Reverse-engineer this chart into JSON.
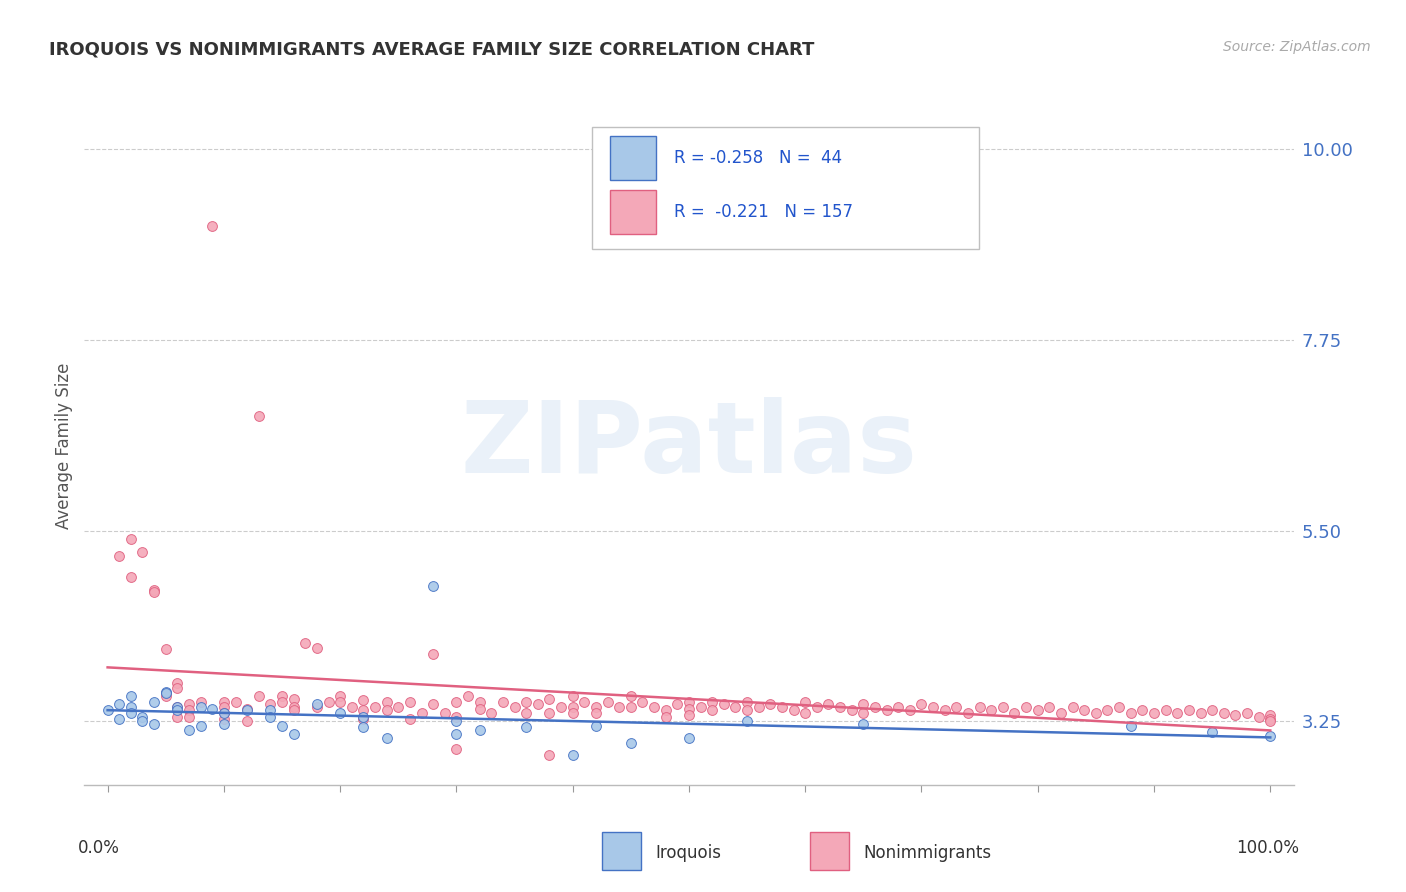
{
  "title": "IROQUOIS VS NONIMMIGRANTS AVERAGE FAMILY SIZE CORRELATION CHART",
  "source": "Source: ZipAtlas.com",
  "ylabel": "Average Family Size",
  "watermark": "ZIPatlas",
  "yticks": [
    3.25,
    5.5,
    7.75,
    10.0
  ],
  "ytick_color": "#4472c4",
  "background_color": "#ffffff",
  "iroquois_color": "#a8c8e8",
  "nonimmigrants_color": "#f4a8b8",
  "iroquois_line_color": "#4472c4",
  "nonimmigrants_line_color": "#e06080",
  "iroquois_points": [
    [
      0.0,
      3.38
    ],
    [
      0.01,
      3.45
    ],
    [
      0.01,
      3.28
    ],
    [
      0.02,
      3.55
    ],
    [
      0.02,
      3.42
    ],
    [
      0.02,
      3.35
    ],
    [
      0.03,
      3.3
    ],
    [
      0.03,
      3.25
    ],
    [
      0.04,
      3.48
    ],
    [
      0.04,
      3.22
    ],
    [
      0.05,
      3.6
    ],
    [
      0.05,
      3.58
    ],
    [
      0.06,
      3.42
    ],
    [
      0.06,
      3.38
    ],
    [
      0.07,
      3.15
    ],
    [
      0.08,
      3.2
    ],
    [
      0.08,
      3.42
    ],
    [
      0.09,
      3.4
    ],
    [
      0.1,
      3.35
    ],
    [
      0.1,
      3.22
    ],
    [
      0.12,
      3.38
    ],
    [
      0.14,
      3.38
    ],
    [
      0.14,
      3.3
    ],
    [
      0.15,
      3.2
    ],
    [
      0.16,
      3.1
    ],
    [
      0.18,
      3.45
    ],
    [
      0.2,
      3.35
    ],
    [
      0.22,
      3.18
    ],
    [
      0.22,
      3.3
    ],
    [
      0.24,
      3.05
    ],
    [
      0.28,
      4.85
    ],
    [
      0.3,
      3.25
    ],
    [
      0.3,
      3.1
    ],
    [
      0.32,
      3.15
    ],
    [
      0.36,
      3.18
    ],
    [
      0.4,
      2.85
    ],
    [
      0.42,
      3.2
    ],
    [
      0.45,
      3.0
    ],
    [
      0.5,
      3.05
    ],
    [
      0.55,
      3.25
    ],
    [
      0.65,
      3.22
    ],
    [
      0.88,
      3.2
    ],
    [
      0.95,
      3.12
    ],
    [
      1.0,
      3.08
    ]
  ],
  "nonimmigrants_points": [
    [
      0.01,
      5.2
    ],
    [
      0.02,
      4.95
    ],
    [
      0.02,
      5.4
    ],
    [
      0.03,
      5.25
    ],
    [
      0.04,
      4.8
    ],
    [
      0.04,
      4.78
    ],
    [
      0.05,
      3.58
    ],
    [
      0.05,
      3.55
    ],
    [
      0.05,
      4.1
    ],
    [
      0.06,
      3.7
    ],
    [
      0.06,
      3.65
    ],
    [
      0.06,
      3.42
    ],
    [
      0.06,
      3.3
    ],
    [
      0.07,
      3.45
    ],
    [
      0.07,
      3.38
    ],
    [
      0.07,
      3.3
    ],
    [
      0.08,
      3.48
    ],
    [
      0.09,
      9.1
    ],
    [
      0.1,
      3.48
    ],
    [
      0.1,
      3.42
    ],
    [
      0.1,
      3.35
    ],
    [
      0.1,
      3.28
    ],
    [
      0.11,
      3.48
    ],
    [
      0.12,
      3.25
    ],
    [
      0.12,
      3.4
    ],
    [
      0.13,
      6.85
    ],
    [
      0.13,
      3.55
    ],
    [
      0.14,
      3.45
    ],
    [
      0.15,
      3.55
    ],
    [
      0.15,
      3.48
    ],
    [
      0.16,
      3.52
    ],
    [
      0.16,
      3.42
    ],
    [
      0.16,
      3.38
    ],
    [
      0.17,
      4.18
    ],
    [
      0.18,
      4.12
    ],
    [
      0.18,
      3.42
    ],
    [
      0.19,
      3.48
    ],
    [
      0.2,
      3.55
    ],
    [
      0.2,
      3.48
    ],
    [
      0.21,
      3.42
    ],
    [
      0.22,
      3.5
    ],
    [
      0.22,
      3.38
    ],
    [
      0.22,
      3.28
    ],
    [
      0.23,
      3.42
    ],
    [
      0.24,
      3.48
    ],
    [
      0.24,
      3.38
    ],
    [
      0.25,
      3.42
    ],
    [
      0.26,
      3.48
    ],
    [
      0.26,
      3.28
    ],
    [
      0.27,
      3.35
    ],
    [
      0.28,
      4.05
    ],
    [
      0.28,
      3.45
    ],
    [
      0.29,
      3.35
    ],
    [
      0.3,
      3.48
    ],
    [
      0.3,
      3.3
    ],
    [
      0.3,
      2.92
    ],
    [
      0.31,
      3.55
    ],
    [
      0.32,
      3.48
    ],
    [
      0.32,
      3.4
    ],
    [
      0.33,
      3.35
    ],
    [
      0.34,
      3.48
    ],
    [
      0.35,
      3.42
    ],
    [
      0.36,
      3.48
    ],
    [
      0.36,
      3.35
    ],
    [
      0.37,
      3.45
    ],
    [
      0.38,
      3.52
    ],
    [
      0.38,
      3.35
    ],
    [
      0.38,
      2.85
    ],
    [
      0.39,
      3.42
    ],
    [
      0.4,
      3.55
    ],
    [
      0.4,
      3.42
    ],
    [
      0.4,
      3.35
    ],
    [
      0.41,
      3.48
    ],
    [
      0.42,
      3.42
    ],
    [
      0.42,
      3.35
    ],
    [
      0.43,
      3.48
    ],
    [
      0.44,
      3.42
    ],
    [
      0.45,
      3.55
    ],
    [
      0.45,
      3.42
    ],
    [
      0.46,
      3.48
    ],
    [
      0.47,
      3.42
    ],
    [
      0.48,
      3.38
    ],
    [
      0.48,
      3.3
    ],
    [
      0.49,
      3.45
    ],
    [
      0.5,
      3.48
    ],
    [
      0.5,
      3.4
    ],
    [
      0.5,
      3.32
    ],
    [
      0.51,
      3.42
    ],
    [
      0.52,
      3.48
    ],
    [
      0.52,
      3.38
    ],
    [
      0.53,
      3.45
    ],
    [
      0.54,
      3.42
    ],
    [
      0.55,
      3.48
    ],
    [
      0.55,
      3.38
    ],
    [
      0.56,
      3.42
    ],
    [
      0.57,
      3.45
    ],
    [
      0.58,
      3.42
    ],
    [
      0.59,
      3.38
    ],
    [
      0.6,
      3.48
    ],
    [
      0.6,
      3.35
    ],
    [
      0.61,
      3.42
    ],
    [
      0.62,
      3.45
    ],
    [
      0.63,
      3.42
    ],
    [
      0.64,
      3.38
    ],
    [
      0.65,
      3.45
    ],
    [
      0.65,
      3.35
    ],
    [
      0.66,
      3.42
    ],
    [
      0.67,
      3.38
    ],
    [
      0.68,
      3.42
    ],
    [
      0.69,
      3.38
    ],
    [
      0.7,
      3.45
    ],
    [
      0.71,
      3.42
    ],
    [
      0.72,
      3.38
    ],
    [
      0.73,
      3.42
    ],
    [
      0.74,
      3.35
    ],
    [
      0.75,
      3.42
    ],
    [
      0.76,
      3.38
    ],
    [
      0.77,
      3.42
    ],
    [
      0.78,
      3.35
    ],
    [
      0.79,
      3.42
    ],
    [
      0.8,
      3.38
    ],
    [
      0.81,
      3.42
    ],
    [
      0.82,
      3.35
    ],
    [
      0.83,
      3.42
    ],
    [
      0.84,
      3.38
    ],
    [
      0.85,
      3.35
    ],
    [
      0.86,
      3.38
    ],
    [
      0.87,
      3.42
    ],
    [
      0.88,
      3.35
    ],
    [
      0.89,
      3.38
    ],
    [
      0.9,
      3.35
    ],
    [
      0.91,
      3.38
    ],
    [
      0.92,
      3.35
    ],
    [
      0.93,
      3.38
    ],
    [
      0.94,
      3.35
    ],
    [
      0.95,
      3.38
    ],
    [
      0.96,
      3.35
    ],
    [
      0.97,
      3.32
    ],
    [
      0.98,
      3.35
    ],
    [
      0.99,
      3.3
    ],
    [
      1.0,
      3.32
    ],
    [
      1.0,
      3.28
    ],
    [
      1.0,
      3.25
    ]
  ],
  "xlim": [
    -0.02,
    1.02
  ],
  "ylim": [
    2.5,
    10.5
  ]
}
